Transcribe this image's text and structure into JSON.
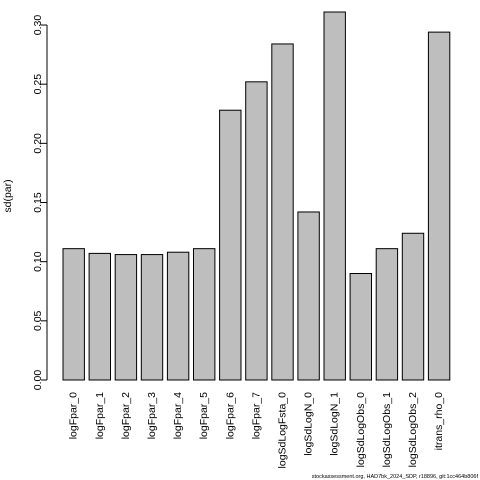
{
  "chart_data": {
    "type": "bar",
    "categories": [
      "logFpar_0",
      "logFpar_1",
      "logFpar_2",
      "logFpar_3",
      "logFpar_4",
      "logFpar_5",
      "logFpar_6",
      "logFpar_7",
      "logSdLogFsta_0",
      "logSdLogN_0",
      "logSdLogN_1",
      "logSdLogObs_0",
      "logSdLogObs_1",
      "logSdLogObs_2",
      "itrans_rho_0"
    ],
    "values": [
      0.111,
      0.107,
      0.106,
      0.106,
      0.108,
      0.111,
      0.228,
      0.252,
      0.284,
      0.142,
      0.311,
      0.09,
      0.111,
      0.124,
      0.294
    ],
    "title": "",
    "xlabel": "",
    "ylabel": "sd(par)",
    "ylim": [
      0,
      0.311
    ],
    "yticks": [
      "0.00",
      "0.05",
      "0.10",
      "0.15",
      "0.20",
      "0.25",
      "0.30"
    ],
    "ytick_values": [
      0,
      0.05,
      0.1,
      0.15,
      0.2,
      0.25,
      0.3
    ],
    "bar_color": "#bebebe",
    "edge_color": "#000000",
    "grid": false,
    "legend": "none"
  },
  "watermark": "stockassessment.org, HAD7bk_2024_SDP, r18896, git:1cc464b806f"
}
